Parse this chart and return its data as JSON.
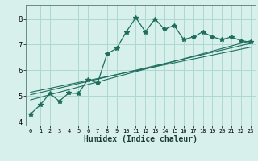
{
  "xlabel": "Humidex (Indice chaleur)",
  "background_color": "#d8f0ec",
  "grid_color": "#aed8d0",
  "line_color": "#1e6e5e",
  "xlim": [
    -0.5,
    23.5
  ],
  "ylim": [
    3.85,
    8.55
  ],
  "yticks": [
    4,
    5,
    6,
    7,
    8
  ],
  "xticks": [
    0,
    1,
    2,
    3,
    4,
    5,
    6,
    7,
    8,
    9,
    10,
    11,
    12,
    13,
    14,
    15,
    16,
    17,
    18,
    19,
    20,
    21,
    22,
    23
  ],
  "main_x": [
    0,
    1,
    2,
    3,
    4,
    5,
    6,
    7,
    8,
    9,
    10,
    11,
    12,
    13,
    14,
    15,
    16,
    17,
    18,
    19,
    20,
    21,
    22,
    23
  ],
  "main_y": [
    4.3,
    4.65,
    5.1,
    4.8,
    5.12,
    5.1,
    5.65,
    5.5,
    6.65,
    6.85,
    7.5,
    8.05,
    7.5,
    8.0,
    7.6,
    7.75,
    7.2,
    7.3,
    7.5,
    7.3,
    7.2,
    7.3,
    7.15,
    7.1
  ],
  "line1_x": [
    0,
    23
  ],
  "line1_y": [
    4.85,
    7.15
  ],
  "line2_x": [
    0,
    23
  ],
  "line2_y": [
    5.05,
    7.05
  ],
  "line3_x": [
    0,
    23
  ],
  "line3_y": [
    5.15,
    6.9
  ]
}
